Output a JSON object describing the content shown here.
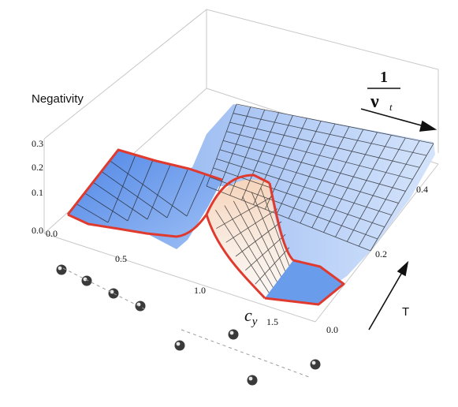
{
  "chart_data": {
    "type": "surface",
    "zlabel": "Negativity",
    "xlabel": "c",
    "xlabel_subscript": "y",
    "ylabel": "T",
    "annotation": {
      "numerator": "1",
      "denominator": "ν",
      "subscript": "t"
    },
    "x_ticks": [
      "0.0",
      "0.5",
      "1.0",
      "1.5"
    ],
    "y_ticks": [
      "0.0",
      "0.2",
      "0.4"
    ],
    "z_ticks": [
      "0.0",
      "0.1",
      "0.2",
      "0.3"
    ],
    "xlim": [
      0,
      1.8
    ],
    "ylim": [
      0,
      0.5
    ],
    "zlim": [
      0,
      0.3
    ],
    "colors": {
      "surface": "#a8c4f4",
      "boundary": "#e03a2f",
      "peak": "#f6d4bb"
    }
  }
}
